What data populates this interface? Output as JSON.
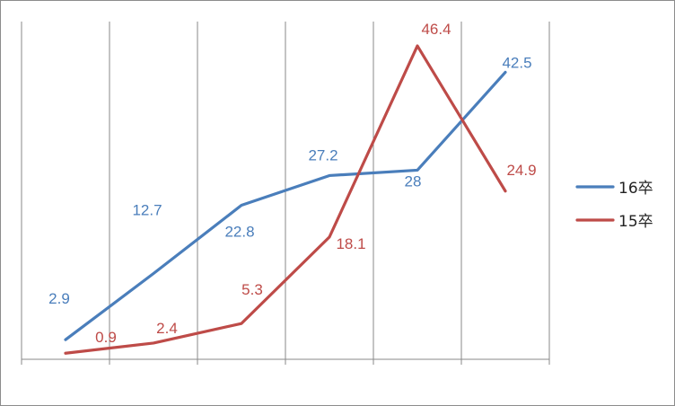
{
  "chart_data": {
    "type": "line",
    "categories": [
      "",
      "",
      "",
      "",
      "",
      ""
    ],
    "ylim": [
      0,
      50
    ],
    "grid": "vertical",
    "legend": "right",
    "series": [
      {
        "name": "16卒",
        "color": "#4a7ebb",
        "values": [
          2.9,
          12.7,
          22.8,
          27.2,
          28,
          42.5
        ],
        "labels": [
          "2.9",
          "12.7",
          "22.8",
          "27.2",
          "28",
          "42.5"
        ]
      },
      {
        "name": "15卒",
        "color": "#be4b48",
        "values": [
          0.9,
          2.4,
          5.3,
          18.1,
          46.4,
          24.9
        ],
        "labels": [
          "0.9",
          "2.4",
          "5.3",
          "18.1",
          "46.4",
          "24.9"
        ]
      }
    ]
  }
}
